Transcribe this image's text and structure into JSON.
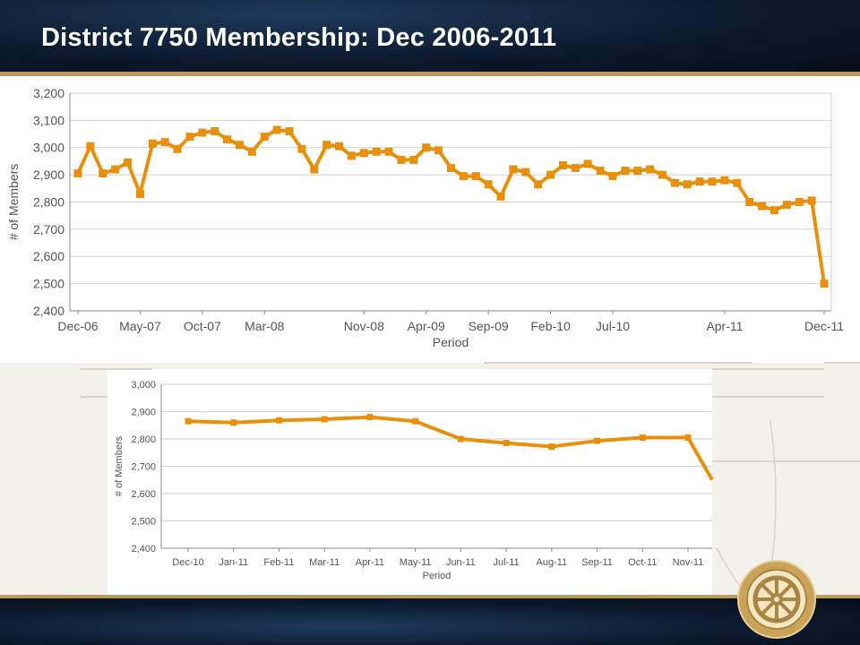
{
  "slide": {
    "title": "District 7750 Membership:  Dec 2006-2011"
  },
  "colors": {
    "line": "#e8900c",
    "grid": "#cfcfcf",
    "axis": "#888888",
    "title_bar": "#0c1a2e",
    "accent_gold": "#b89a5a"
  },
  "chart_data": [
    {
      "type": "line",
      "title": "",
      "xlabel": "Period",
      "ylabel": "# of Members",
      "ylim": [
        2400,
        3200
      ],
      "yticks": [
        "2,400",
        "2,500",
        "2,600",
        "2,700",
        "2,800",
        "2,900",
        "3,000",
        "3,100",
        "3,200"
      ],
      "xtick_labels": [
        "Dec-06",
        "May-07",
        "Oct-07",
        "Mar-08",
        "Nov-08",
        "Apr-09",
        "Sep-09",
        "Feb-10",
        "Jul-10",
        "Apr-11",
        "Dec-11"
      ],
      "xtick_index": [
        0,
        5,
        10,
        15,
        23,
        28,
        33,
        38,
        43,
        52,
        60
      ],
      "grid": true,
      "series": [
        {
          "values": [
            2905,
            3005,
            2905,
            2920,
            2945,
            2830,
            3015,
            3020,
            2995,
            3040,
            3055,
            3060,
            3030,
            3010,
            2985,
            3040,
            3065,
            3060,
            2995,
            2920,
            3010,
            3005,
            2970,
            2980,
            2985,
            2985,
            2955,
            2955,
            3000,
            2990,
            2925,
            2895,
            2895,
            2865,
            2820,
            2920,
            2910,
            2865,
            2900,
            2935,
            2925,
            2940,
            2915,
            2895,
            2915,
            2915,
            2920,
            2900,
            2870,
            2865,
            2875,
            2875,
            2880,
            2870,
            2800,
            2785,
            2770,
            2790,
            2800,
            2805,
            2500
          ]
        }
      ]
    },
    {
      "type": "line",
      "title": "",
      "xlabel": "Period",
      "ylabel": "# of Members",
      "ylim": [
        2400,
        3000
      ],
      "yticks": [
        "2,400",
        "2,500",
        "2,600",
        "2,700",
        "2,800",
        "2,900",
        "3,000"
      ],
      "categories": [
        "Dec-10",
        "Jan-11",
        "Feb-11",
        "Mar-11",
        "Apr-11",
        "May-11",
        "Jun-11",
        "Jul-11",
        "Aug-11",
        "Sep-11",
        "Oct-11",
        "Nov-11"
      ],
      "grid": true,
      "series": [
        {
          "values": [
            2865,
            2860,
            2868,
            2872,
            2880,
            2865,
            2800,
            2785,
            2772,
            2793,
            2805,
            2805
          ]
        }
      ]
    }
  ]
}
